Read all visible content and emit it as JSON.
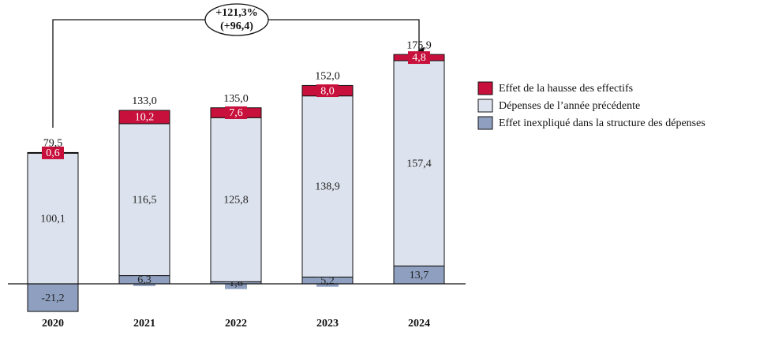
{
  "chart_data": {
    "type": "stacked-bar",
    "categories": [
      "2020",
      "2021",
      "2022",
      "2023",
      "2024"
    ],
    "series": [
      {
        "name": "Effet inexpliqué dans la structure des dépenses",
        "color": "#8e9fbf",
        "values": [
          -21.2,
          6.3,
          1.6,
          5.2,
          13.7
        ],
        "value_labels": [
          "-21,2",
          "6,3",
          "1,6",
          "5,2",
          "13,7"
        ]
      },
      {
        "name": "Dépenses de l’année précédente",
        "color": "#dde3ee",
        "values": [
          100.1,
          116.5,
          125.8,
          138.9,
          157.4
        ],
        "value_labels": [
          "100,1",
          "116,5",
          "125,8",
          "138,9",
          "157,4"
        ]
      },
      {
        "name": "Effet de la hausse des effectifs",
        "color": "#c8103c",
        "values": [
          0.6,
          10.2,
          7.6,
          8.0,
          4.8
        ],
        "value_labels": [
          "0,6",
          "10,2",
          "7,6",
          "8,0",
          "4,8"
        ]
      }
    ],
    "totals": {
      "values": [
        79.5,
        133.0,
        135.0,
        152.0,
        175.9
      ],
      "value_labels": [
        "79,5",
        "133,0",
        "135,0",
        "152,0",
        "175,9"
      ]
    },
    "annotation": [
      "+121,3%",
      "(+96,4)"
    ]
  }
}
